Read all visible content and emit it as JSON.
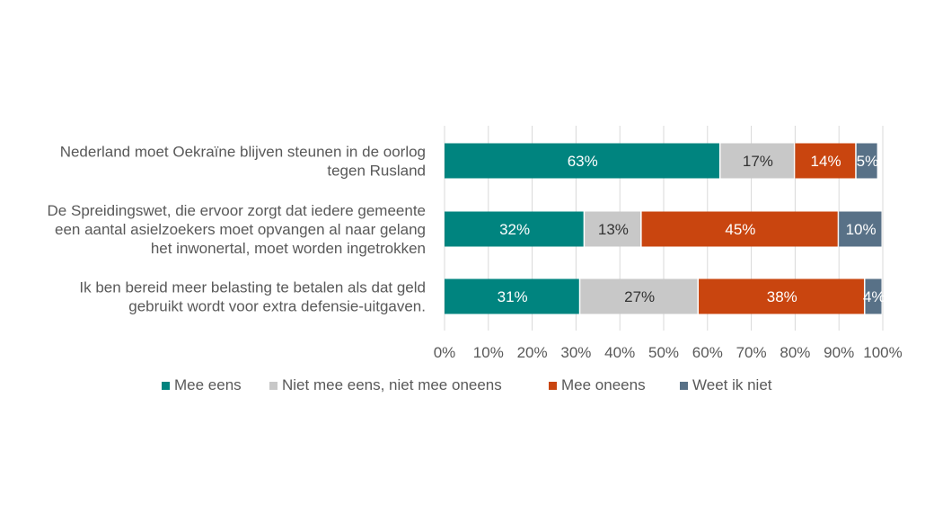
{
  "chart_data": {
    "type": "bar",
    "orientation": "horizontal",
    "stacked": "percent",
    "categories": [
      [
        "Nederland moet Oekraïne blijven steunen in de oorlog",
        "tegen Rusland"
      ],
      [
        "De Spreidingswet, die ervoor zorgt dat iedere gemeente",
        "een aantal asielzoekers moet opvangen al naar gelang",
        "het inwonertal, moet worden ingetrokken"
      ],
      [
        "Ik ben bereid meer belasting te betalen als dat geld",
        "gebruikt wordt voor extra defensie-uitgaven."
      ]
    ],
    "series": [
      {
        "name": "Mee eens",
        "color": "#00847f",
        "label_color": "#ffffff",
        "values": [
          63,
          32,
          31
        ],
        "labels": [
          "63%",
          "32%",
          "31%"
        ]
      },
      {
        "name": "Niet mee eens, niet mee oneens",
        "color": "#c8c8c8",
        "label_color": "#333333",
        "values": [
          17,
          13,
          27
        ],
        "labels": [
          "17%",
          "13%",
          "27%"
        ]
      },
      {
        "name": "Mee oneens",
        "color": "#c9450f",
        "label_color": "#ffffff",
        "values": [
          14,
          45,
          38
        ],
        "labels": [
          "14%",
          "45%",
          "38%"
        ]
      },
      {
        "name": "Weet ik niet",
        "color": "#587187",
        "label_color": "#ffffff",
        "values": [
          5,
          10,
          4
        ],
        "labels": [
          "5%",
          "10%",
          "4%"
        ]
      }
    ],
    "x_ticks": [
      "0%",
      "10%",
      "20%",
      "30%",
      "40%",
      "50%",
      "60%",
      "70%",
      "80%",
      "90%",
      "100%"
    ],
    "xlim": [
      0,
      100
    ],
    "grid": true,
    "legend_position": "bottom"
  }
}
